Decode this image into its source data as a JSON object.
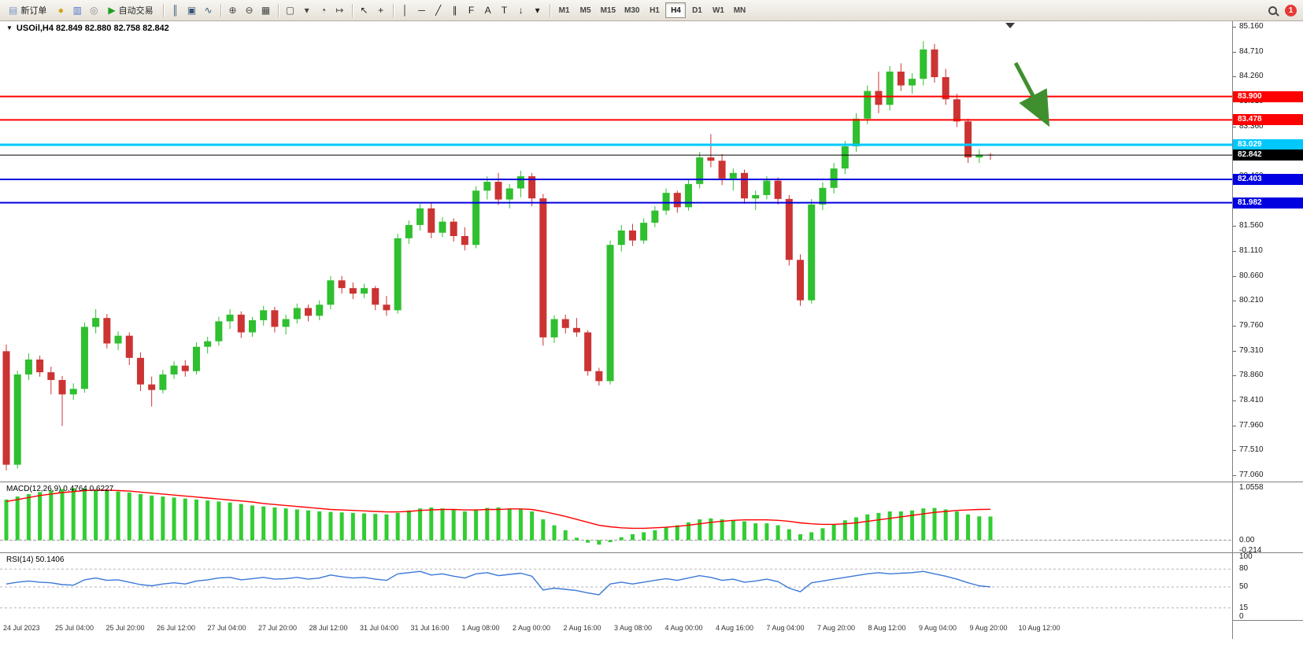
{
  "toolbar": {
    "new_order_label": "新订单",
    "auto_trading_label": "自动交易",
    "notification_badge": "1",
    "timeframes": [
      "M1",
      "M5",
      "M15",
      "M30",
      "H1",
      "H4",
      "D1",
      "W1",
      "MN"
    ],
    "active_timeframe": "H4",
    "items": [
      {
        "type": "button",
        "name": "new-order-button",
        "icon_name": "new-order-icon",
        "glyph": "▤",
        "color": "#7b96c2",
        "label_key": "new_order_label"
      },
      {
        "type": "icon",
        "name": "market-watch-icon",
        "glyph": "●",
        "color": "#d4a017"
      },
      {
        "type": "icon",
        "name": "charts-grid-icon",
        "glyph": "▥",
        "color": "#4a72c8"
      },
      {
        "type": "icon",
        "name": "data-window-icon",
        "glyph": "◎",
        "color": "#8a8a8a"
      },
      {
        "type": "button",
        "name": "auto-trading-button",
        "icon_name": "auto-trading-play-icon",
        "glyph": "▶",
        "color": "#1e9e1e",
        "label_key": "auto_trading_label"
      },
      {
        "type": "sep"
      },
      {
        "type": "icon",
        "name": "bar-chart-type-icon",
        "glyph": "║",
        "color": "#335577"
      },
      {
        "type": "icon",
        "name": "candlestick-chart-type-icon",
        "glyph": "▣",
        "color": "#335577"
      },
      {
        "type": "icon",
        "name": "line-chart-type-icon",
        "glyph": "∿",
        "color": "#335577"
      },
      {
        "type": "sep"
      },
      {
        "type": "icon",
        "name": "zoom-in-icon",
        "glyph": "⊕",
        "color": "#444444"
      },
      {
        "type": "icon",
        "name": "zoom-out-icon",
        "glyph": "⊖",
        "color": "#444444"
      },
      {
        "type": "icon",
        "name": "tile-windows-icon",
        "glyph": "▦",
        "color": "#444444"
      },
      {
        "type": "sep"
      },
      {
        "type": "icon",
        "name": "new-chart-icon",
        "glyph": "▢",
        "color": "#444444"
      },
      {
        "type": "icon",
        "name": "new-chart-dropdown-icon",
        "glyph": "▾",
        "color": "#444444"
      },
      {
        "type": "icon",
        "name": "profiles-icon",
        "glyph": "◔",
        "color": "#444444"
      },
      {
        "type": "icon",
        "name": "chart-shift-icon",
        "glyph": "↦",
        "color": "#444444"
      },
      {
        "type": "sep"
      },
      {
        "type": "icon",
        "name": "cursor-icon",
        "glyph": "↖",
        "color": "#222222"
      },
      {
        "type": "icon",
        "name": "crosshair-icon",
        "glyph": "+",
        "color": "#222222"
      },
      {
        "type": "sep"
      },
      {
        "type": "icon",
        "name": "vertical-line-icon",
        "glyph": "│",
        "color": "#222222"
      },
      {
        "type": "icon",
        "name": "horizontal-line-icon",
        "glyph": "─",
        "color": "#222222"
      },
      {
        "type": "icon",
        "name": "trendline-icon",
        "glyph": "╱",
        "color": "#222222"
      },
      {
        "type": "icon",
        "name": "equidistant-channel-icon",
        "glyph": "∥",
        "color": "#222222"
      },
      {
        "type": "icon",
        "name": "fibonacci-icon",
        "glyph": "F",
        "color": "#222222"
      },
      {
        "type": "icon",
        "name": "text-icon",
        "glyph": "A",
        "color": "#222222"
      },
      {
        "type": "icon",
        "name": "text-label-icon",
        "glyph": "T",
        "color": "#222222"
      },
      {
        "type": "icon",
        "name": "arrows-tool-icon",
        "glyph": "↓",
        "color": "#222222"
      },
      {
        "type": "icon",
        "name": "tools-dropdown-icon",
        "glyph": "▾",
        "color": "#222222"
      },
      {
        "type": "sep"
      },
      {
        "type": "timeframes"
      },
      {
        "type": "spacer"
      },
      {
        "type": "search"
      },
      {
        "type": "badge"
      }
    ]
  },
  "chart_data": {
    "type": "candlestick",
    "symbol": "USOil",
    "timeframe": "H4",
    "legend": "USOil,H4  82.849 82.880 82.758 82.842",
    "current_quote": {
      "open": 82.849,
      "high": 82.88,
      "low": 82.758,
      "close": 82.842
    },
    "colors": {
      "up": "#2fbf2f",
      "down": "#cc3333",
      "background": "#ffffff"
    },
    "y_axis": {
      "max": 85.16,
      "min": 77.06,
      "tick_step": 0.45
    },
    "y_tick_labels": [
      "85.160",
      "84.710",
      "84.260",
      "83.810",
      "83.360",
      "82.910",
      "82.460",
      "82.010",
      "81.560",
      "81.110",
      "80.660",
      "80.210",
      "79.760",
      "79.310",
      "78.860",
      "78.410",
      "77.960",
      "77.510",
      "77.060"
    ],
    "x_axis_labels": [
      "24 Jul 2023",
      "25 Jul 04:00",
      "25 Jul 20:00",
      "26 Jul 12:00",
      "27 Jul 04:00",
      "27 Jul 20:00",
      "28 Jul 12:00",
      "31 Jul 04:00",
      "31 Jul 16:00",
      "1 Aug 08:00",
      "2 Aug 00:00",
      "2 Aug 16:00",
      "3 Aug 08:00",
      "4 Aug 00:00",
      "4 Aug 16:00",
      "7 Aug 04:00",
      "7 Aug 20:00",
      "8 Aug 12:00",
      "9 Aug 04:00",
      "9 Aug 20:00",
      "10 Aug 12:00"
    ],
    "horizontal_lines": [
      {
        "price": 83.9,
        "label": "83.900",
        "color": "#ff0000",
        "width": 2,
        "role": "resistance"
      },
      {
        "price": 83.478,
        "label": "83.478",
        "color": "#ff0000",
        "width": 2,
        "role": "resistance"
      },
      {
        "price": 83.029,
        "label": "83.029",
        "color": "#00c8ff",
        "width": 3,
        "role": "level"
      },
      {
        "price": 82.842,
        "label": "82.842",
        "color": "#000000",
        "width": 1,
        "role": "current-price"
      },
      {
        "price": 82.403,
        "label": "82.403",
        "color": "#0000e0",
        "width": 2,
        "role": "support"
      },
      {
        "price": 81.982,
        "label": "81.982",
        "color": "#0000e0",
        "width": 2,
        "role": "support"
      }
    ],
    "candles_ohlc": [
      [
        79.3,
        79.42,
        77.15,
        77.25
      ],
      [
        77.25,
        78.95,
        77.18,
        78.88
      ],
      [
        78.88,
        79.26,
        78.78,
        79.15
      ],
      [
        79.15,
        79.22,
        78.84,
        78.92
      ],
      [
        78.92,
        79.02,
        78.52,
        78.78
      ],
      [
        78.78,
        78.85,
        77.95,
        78.52
      ],
      [
        78.52,
        78.72,
        78.42,
        78.62
      ],
      [
        78.62,
        79.82,
        78.55,
        79.74
      ],
      [
        79.74,
        80.06,
        79.62,
        79.9
      ],
      [
        79.9,
        79.97,
        79.35,
        79.44
      ],
      [
        79.44,
        79.66,
        79.32,
        79.58
      ],
      [
        79.58,
        79.64,
        79.05,
        79.18
      ],
      [
        79.18,
        79.28,
        78.58,
        78.7
      ],
      [
        78.7,
        78.84,
        78.3,
        78.6
      ],
      [
        78.6,
        78.96,
        78.54,
        78.88
      ],
      [
        78.88,
        79.12,
        78.8,
        79.04
      ],
      [
        79.04,
        79.14,
        78.84,
        78.94
      ],
      [
        78.94,
        79.46,
        78.88,
        79.38
      ],
      [
        79.38,
        79.56,
        79.26,
        79.48
      ],
      [
        79.48,
        79.92,
        79.4,
        79.84
      ],
      [
        79.84,
        80.06,
        79.7,
        79.96
      ],
      [
        79.96,
        80.02,
        79.54,
        79.64
      ],
      [
        79.64,
        79.92,
        79.56,
        79.86
      ],
      [
        79.86,
        80.12,
        79.76,
        80.04
      ],
      [
        80.04,
        80.1,
        79.64,
        79.74
      ],
      [
        79.74,
        79.96,
        79.6,
        79.88
      ],
      [
        79.88,
        80.16,
        79.8,
        80.08
      ],
      [
        80.08,
        80.14,
        79.84,
        79.94
      ],
      [
        79.94,
        80.22,
        79.86,
        80.14
      ],
      [
        80.14,
        80.66,
        80.06,
        80.58
      ],
      [
        80.58,
        80.66,
        80.34,
        80.44
      ],
      [
        80.44,
        80.54,
        80.24,
        80.34
      ],
      [
        80.34,
        80.52,
        80.26,
        80.44
      ],
      [
        80.44,
        80.48,
        80.04,
        80.14
      ],
      [
        80.14,
        80.3,
        79.94,
        80.04
      ],
      [
        80.04,
        81.42,
        79.98,
        81.34
      ],
      [
        81.34,
        81.66,
        81.24,
        81.58
      ],
      [
        81.58,
        81.96,
        81.48,
        81.88
      ],
      [
        81.88,
        81.97,
        81.34,
        81.44
      ],
      [
        81.44,
        81.72,
        81.36,
        81.64
      ],
      [
        81.64,
        81.7,
        81.28,
        81.38
      ],
      [
        81.38,
        81.54,
        81.12,
        81.22
      ],
      [
        81.22,
        82.28,
        81.16,
        82.2
      ],
      [
        82.2,
        82.46,
        82.04,
        82.36
      ],
      [
        82.36,
        82.52,
        81.94,
        82.04
      ],
      [
        82.04,
        82.32,
        81.88,
        82.24
      ],
      [
        82.24,
        82.56,
        82.08,
        82.46
      ],
      [
        82.46,
        82.52,
        81.92,
        82.06
      ],
      [
        82.06,
        82.14,
        79.4,
        79.55
      ],
      [
        79.55,
        79.95,
        79.45,
        79.88
      ],
      [
        79.88,
        79.96,
        79.62,
        79.72
      ],
      [
        79.72,
        79.9,
        79.56,
        79.64
      ],
      [
        79.64,
        79.68,
        78.86,
        78.94
      ],
      [
        78.94,
        79.0,
        78.68,
        78.76
      ],
      [
        78.76,
        81.3,
        78.7,
        81.22
      ],
      [
        81.22,
        81.58,
        81.1,
        81.48
      ],
      [
        81.48,
        81.6,
        81.2,
        81.3
      ],
      [
        81.3,
        81.7,
        81.24,
        81.62
      ],
      [
        81.62,
        81.92,
        81.54,
        81.84
      ],
      [
        81.84,
        82.24,
        81.76,
        82.16
      ],
      [
        82.16,
        82.2,
        81.8,
        81.9
      ],
      [
        81.9,
        82.4,
        81.84,
        82.32
      ],
      [
        82.32,
        82.9,
        82.24,
        82.8
      ],
      [
        82.8,
        83.22,
        82.62,
        82.74
      ],
      [
        82.74,
        82.86,
        82.3,
        82.42
      ],
      [
        82.42,
        82.6,
        82.2,
        82.52
      ],
      [
        82.52,
        82.58,
        81.96,
        82.06
      ],
      [
        82.06,
        82.2,
        81.85,
        82.12
      ],
      [
        82.12,
        82.46,
        82.04,
        82.38
      ],
      [
        82.38,
        82.44,
        81.95,
        82.05
      ],
      [
        82.05,
        82.12,
        80.85,
        80.95
      ],
      [
        80.95,
        81.05,
        80.12,
        80.22
      ],
      [
        80.22,
        82.05,
        80.16,
        81.95
      ],
      [
        81.95,
        82.35,
        81.85,
        82.25
      ],
      [
        82.25,
        82.7,
        82.15,
        82.6
      ],
      [
        82.6,
        83.1,
        82.5,
        83.0
      ],
      [
        83.0,
        83.6,
        82.9,
        83.5
      ],
      [
        83.5,
        84.1,
        83.4,
        84.0
      ],
      [
        84.0,
        84.35,
        83.6,
        83.75
      ],
      [
        83.75,
        84.45,
        83.65,
        84.35
      ],
      [
        84.35,
        84.5,
        84.0,
        84.1
      ],
      [
        84.1,
        84.32,
        83.95,
        84.22
      ],
      [
        84.22,
        84.9,
        84.1,
        84.75
      ],
      [
        84.75,
        84.85,
        84.15,
        84.25
      ],
      [
        84.25,
        84.4,
        83.75,
        83.85
      ],
      [
        83.85,
        83.95,
        83.35,
        83.45
      ],
      [
        83.45,
        83.5,
        82.7,
        82.8
      ],
      [
        82.8,
        82.95,
        82.7,
        82.85
      ],
      [
        82.849,
        82.88,
        82.758,
        82.842
      ]
    ],
    "indicators": {
      "macd": {
        "label": "MACD(12,26,9) 0.4764 0.6227",
        "params": [
          12,
          26,
          9
        ],
        "current_macd": 0.4764,
        "current_signal": 0.6227,
        "scale_max": 1.0558,
        "scale_min": -0.214,
        "scale_labels": [
          "1.0558",
          "0.00",
          "-0.214"
        ],
        "histogram_color": "#32cd32",
        "signal_color": "#ff0000",
        "histogram": [
          0.82,
          0.88,
          0.93,
          0.97,
          1.0,
          1.03,
          1.05,
          1.04,
          1.02,
          1.0,
          0.98,
          0.96,
          0.93,
          0.9,
          0.88,
          0.86,
          0.84,
          0.82,
          0.8,
          0.78,
          0.76,
          0.73,
          0.7,
          0.68,
          0.66,
          0.64,
          0.62,
          0.6,
          0.58,
          0.57,
          0.56,
          0.55,
          0.54,
          0.53,
          0.52,
          0.55,
          0.6,
          0.64,
          0.66,
          0.64,
          0.62,
          0.58,
          0.62,
          0.65,
          0.66,
          0.64,
          0.62,
          0.58,
          0.42,
          0.3,
          0.2,
          0.05,
          -0.05,
          -0.09,
          -0.04,
          0.06,
          0.12,
          0.16,
          0.2,
          0.26,
          0.3,
          0.36,
          0.42,
          0.44,
          0.42,
          0.4,
          0.38,
          0.34,
          0.34,
          0.3,
          0.22,
          0.12,
          0.16,
          0.24,
          0.32,
          0.4,
          0.46,
          0.52,
          0.55,
          0.58,
          0.58,
          0.6,
          0.64,
          0.65,
          0.62,
          0.58,
          0.52,
          0.48,
          0.476
        ],
        "signal": [
          0.78,
          0.82,
          0.86,
          0.9,
          0.93,
          0.96,
          0.98,
          1.0,
          1.01,
          1.01,
          1.0,
          0.99,
          0.97,
          0.95,
          0.93,
          0.91,
          0.89,
          0.87,
          0.85,
          0.83,
          0.81,
          0.79,
          0.77,
          0.74,
          0.72,
          0.7,
          0.68,
          0.66,
          0.64,
          0.62,
          0.61,
          0.6,
          0.59,
          0.58,
          0.57,
          0.57,
          0.58,
          0.6,
          0.61,
          0.62,
          0.62,
          0.61,
          0.61,
          0.62,
          0.62,
          0.63,
          0.63,
          0.62,
          0.58,
          0.53,
          0.48,
          0.42,
          0.36,
          0.3,
          0.27,
          0.25,
          0.24,
          0.24,
          0.25,
          0.26,
          0.28,
          0.3,
          0.33,
          0.36,
          0.38,
          0.4,
          0.41,
          0.41,
          0.41,
          0.4,
          0.38,
          0.35,
          0.33,
          0.32,
          0.32,
          0.33,
          0.35,
          0.38,
          0.41,
          0.44,
          0.47,
          0.5,
          0.53,
          0.56,
          0.58,
          0.6,
          0.61,
          0.62,
          0.622
        ]
      },
      "rsi": {
        "label": "RSI(14) 50.1406",
        "period": 14,
        "current": 50.1406,
        "color": "#3c78d8",
        "levels": [
          80,
          50,
          15
        ],
        "scale_labels": [
          "100",
          "80",
          "50",
          "15",
          "0"
        ],
        "scale_values": [
          100,
          80,
          50,
          15,
          0
        ],
        "values": [
          55,
          58,
          60,
          58,
          57,
          54,
          53,
          62,
          65,
          61,
          62,
          58,
          54,
          52,
          55,
          57,
          55,
          60,
          62,
          65,
          66,
          62,
          64,
          66,
          63,
          64,
          66,
          63,
          65,
          70,
          67,
          65,
          66,
          63,
          61,
          72,
          74,
          76,
          70,
          72,
          68,
          65,
          72,
          74,
          69,
          71,
          73,
          68,
          45,
          48,
          46,
          44,
          40,
          37,
          55,
          58,
          55,
          58,
          61,
          64,
          61,
          65,
          69,
          66,
          61,
          63,
          58,
          60,
          63,
          59,
          48,
          42,
          57,
          60,
          63,
          66,
          69,
          72,
          74,
          72,
          73,
          74,
          76,
          72,
          68,
          63,
          57,
          52,
          50.14
        ]
      }
    },
    "annotations": [
      {
        "type": "arrow",
        "direction": "down-right",
        "color": "#3f8f2f"
      }
    ]
  }
}
